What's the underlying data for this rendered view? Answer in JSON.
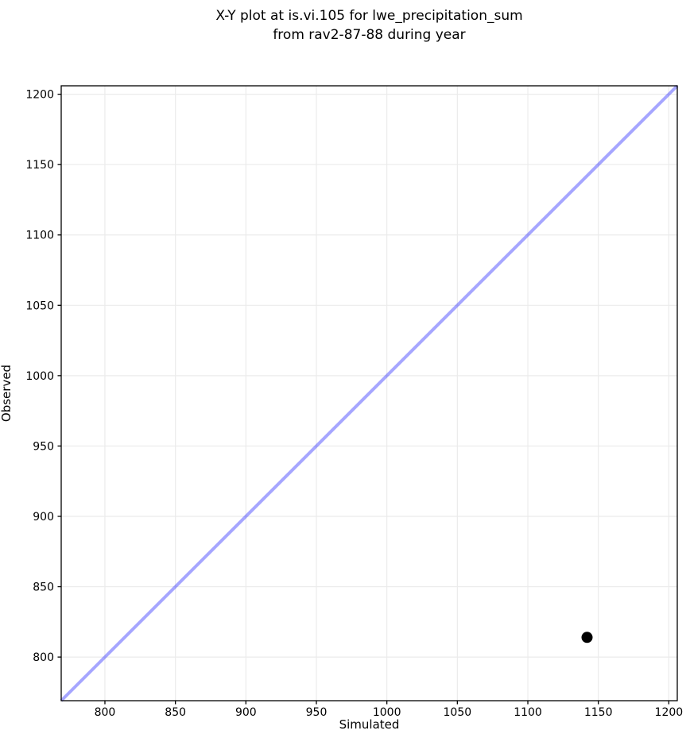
{
  "figure": {
    "title_lines": [
      "X-Y plot at is.vi.105 for lwe_precipitation_sum",
      "from rav2-87-88 during year"
    ]
  },
  "chart_data": {
    "type": "scatter",
    "title": "X-Y plot at is.vi.105 for lwe_precipitation_sum\nfrom rav2-87-88 during year",
    "xlabel": "Simulated",
    "ylabel": "Observed",
    "xlim": [
      769,
      1206
    ],
    "ylim": [
      769,
      1206
    ],
    "xticks": [
      800,
      850,
      900,
      950,
      1000,
      1050,
      1100,
      1150,
      1200
    ],
    "yticks": [
      800,
      850,
      900,
      950,
      1000,
      1050,
      1100,
      1150,
      1200
    ],
    "grid": true,
    "legend": "none",
    "series": [
      {
        "name": "identity-line",
        "type": "line",
        "x": [
          769,
          1206
        ],
        "y": [
          769,
          1206
        ],
        "color": "#0000ff",
        "opacity": 0.35,
        "line_width": 4
      },
      {
        "name": "observed-vs-simulated",
        "type": "scatter",
        "x": [
          1142
        ],
        "y": [
          814
        ],
        "color": "#000000",
        "marker_radius": 7
      }
    ],
    "colors": {
      "grid": "#ebebeb",
      "axis_frame": "#000000",
      "background": "#ffffff"
    }
  }
}
